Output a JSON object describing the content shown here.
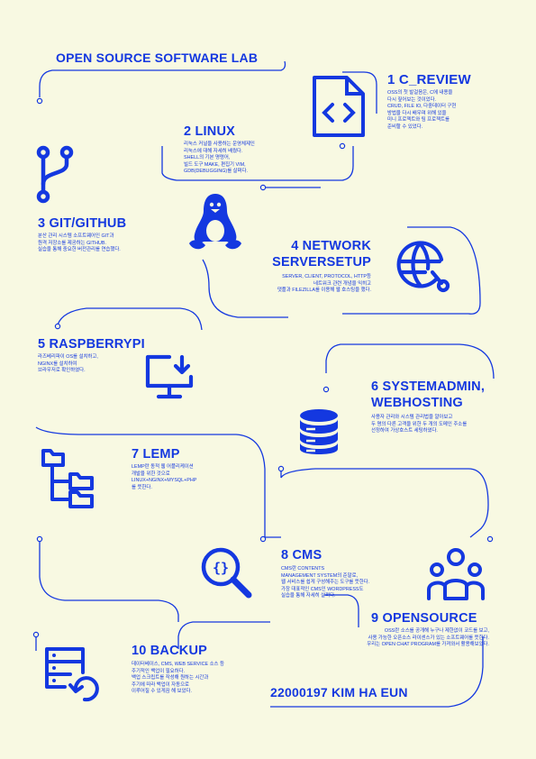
{
  "title": "OPEN SOURCE SOFTWARE LAB",
  "footer": "22000197 KIM HA EUN",
  "colors": {
    "background": "#f8f9e2",
    "accent": "#1438e0"
  },
  "sections": [
    {
      "heading": "1 C_REVIEW",
      "icon": "code-file-icon",
      "lines": [
        "OSS의 첫 발걸음은, C에 내용을",
        "다시 짚어보는 것이었다.",
        "CRUD, FILE IO, 다중데이터 구현",
        "방법을 다시 배우며 위해 있을",
        "미니 프로젝트와 팀 프로젝트를",
        "준비할 수 있었다."
      ]
    },
    {
      "heading": "2 LINUX",
      "icon": "tux-penguin-icon",
      "lines": [
        "리눅스 커널을 사용하는 운영체제인",
        "리눅스에 대해 자세히 배웠다.",
        "SHELL의 기본 명령어,",
        "빌드 도구 MAKE, 편집기 VIM,",
        "GDB(DEBUGGING)를 살펴다."
      ]
    },
    {
      "heading": "3 GIT/GITHUB",
      "icon": "git-branch-icon",
      "lines": [
        "분산 관리 시스템 소프트웨어인 GIT과",
        "원격 저장소를 제공하는 GITHUB.",
        "실습을 통해 중요한 버전관리를 연습했다."
      ]
    },
    {
      "heading": "4 NETWORK",
      "heading2": "SERVERSETUP",
      "icon": "globe-network-icon",
      "lines": [
        "SERVER, CLIENT, PROTOCOL, HTTP등",
        "네트워크 관련 개념을 익히고",
        "댓플과 FILEZILLA를 이용해 웹 호스팅을 했다."
      ]
    },
    {
      "heading": "5 RASPBERRYPI",
      "icon": "monitor-download-icon",
      "lines": [
        "라즈베리파이 OS를 설치하고,",
        "NGINX를 설치하여",
        "브라우저로 확인하였다."
      ]
    },
    {
      "heading": "6 SYSTEMADMIN,",
      "heading2": "WEBHOSTING",
      "icon": "database-icon",
      "lines": [
        "사용자 관리와 시스템 관리법을 알아보고",
        "두 명의 다른 고객을 위한 두 개의 도메인 주소를",
        "선정하여 가상호스트 세팅하였다."
      ]
    },
    {
      "heading": "7 LEMP",
      "icon": "folder-tree-icon",
      "lines": [
        "LEMP란 동적 웹 어플리케이션",
        "개발을 위한 것으로",
        "LINUX+NGINX+MYSQL+PHP",
        "를 뜻한다."
      ]
    },
    {
      "heading": "8 CMS",
      "icon": "magnifier-code-icon",
      "lines": [
        "CMS란 CONTENTS",
        "MANAGEMENT SYSTEM의 준말로,",
        "웹 서비스를 쉽게 구성해주는 도구를 뜻한다.",
        "가장 대표적인 CMS인 WORDPRESS도",
        "실습을 통해 자세히 살펴다."
      ]
    },
    {
      "heading": "9 OPENSOURCE",
      "icon": "community-users-icon",
      "lines": [
        "OSS란 소스를 공개해 누구나 제한없이 코드를 보고,",
        "사용 가능한 오픈소스 라이센스가 있는 소프트웨어를 뜻한다.",
        "우리는 OPEN CHAT PROGRAM를 가져와서 활용해보았다."
      ]
    },
    {
      "heading": "10 BACKUP",
      "icon": "server-backup-icon",
      "lines": [
        "데이터베이스, CMS, WEB SERVICE 소스 등",
        "주기적인 백업이 필요하다.",
        "백업 스크립트를 작성해 원하는 시간과",
        "주기에 따라 백업이 자동으로",
        "이루어질 수 있게끔 해 보았다."
      ]
    }
  ]
}
